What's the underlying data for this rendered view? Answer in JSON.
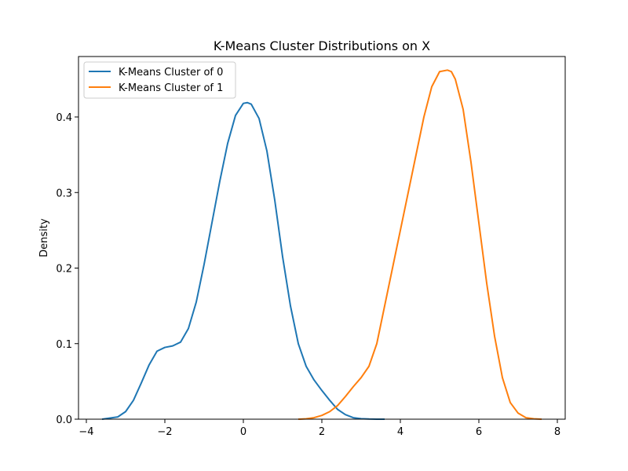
{
  "chart_data": {
    "type": "line",
    "title": "K-Means Cluster Distributions on X",
    "xlabel": "",
    "ylabel": "Density",
    "xlim": [
      -4.2,
      8.2
    ],
    "ylim": [
      0,
      0.48
    ],
    "xticks": [
      -4,
      -2,
      0,
      2,
      4,
      6,
      8
    ],
    "xtick_labels": [
      "−4",
      "−2",
      "0",
      "2",
      "4",
      "6",
      "8"
    ],
    "yticks": [
      0.0,
      0.1,
      0.2,
      0.3,
      0.4
    ],
    "ytick_labels": [
      "0.0",
      "0.1",
      "0.2",
      "0.3",
      "0.4"
    ],
    "grid": false,
    "legend_position": "top-left",
    "series": [
      {
        "name": "K-Means Cluster of 0",
        "color": "#1f77b4",
        "x": [
          -3.6,
          -3.2,
          -3.0,
          -2.8,
          -2.6,
          -2.4,
          -2.2,
          -2.0,
          -1.8,
          -1.6,
          -1.4,
          -1.2,
          -1.0,
          -0.8,
          -0.6,
          -0.4,
          -0.2,
          0.0,
          0.1,
          0.2,
          0.4,
          0.6,
          0.8,
          1.0,
          1.2,
          1.4,
          1.6,
          1.8,
          2.0,
          2.2,
          2.4,
          2.6,
          2.8,
          3.0,
          3.2,
          3.4,
          3.6
        ],
        "y": [
          0.0,
          0.003,
          0.01,
          0.025,
          0.048,
          0.072,
          0.09,
          0.095,
          0.097,
          0.102,
          0.12,
          0.155,
          0.205,
          0.26,
          0.315,
          0.365,
          0.402,
          0.418,
          0.419,
          0.417,
          0.398,
          0.355,
          0.29,
          0.215,
          0.15,
          0.1,
          0.07,
          0.052,
          0.038,
          0.025,
          0.013,
          0.006,
          0.002,
          0.0007,
          0.0002,
          5e-05,
          0.0
        ]
      },
      {
        "name": "K-Means Cluster of 1",
        "color": "#ff7f0e",
        "x": [
          1.4,
          1.6,
          1.8,
          2.0,
          2.2,
          2.4,
          2.6,
          2.8,
          3.0,
          3.2,
          3.4,
          3.6,
          3.8,
          4.0,
          4.2,
          4.4,
          4.6,
          4.8,
          5.0,
          5.2,
          5.3,
          5.4,
          5.6,
          5.8,
          6.0,
          6.2,
          6.4,
          6.6,
          6.8,
          7.0,
          7.2,
          7.4,
          7.6
        ],
        "y": [
          0.0,
          0.0005,
          0.002,
          0.005,
          0.01,
          0.018,
          0.03,
          0.043,
          0.055,
          0.07,
          0.1,
          0.15,
          0.2,
          0.25,
          0.3,
          0.35,
          0.4,
          0.44,
          0.46,
          0.462,
          0.46,
          0.45,
          0.41,
          0.34,
          0.26,
          0.18,
          0.11,
          0.055,
          0.022,
          0.008,
          0.002,
          0.0005,
          0.0
        ]
      }
    ]
  }
}
